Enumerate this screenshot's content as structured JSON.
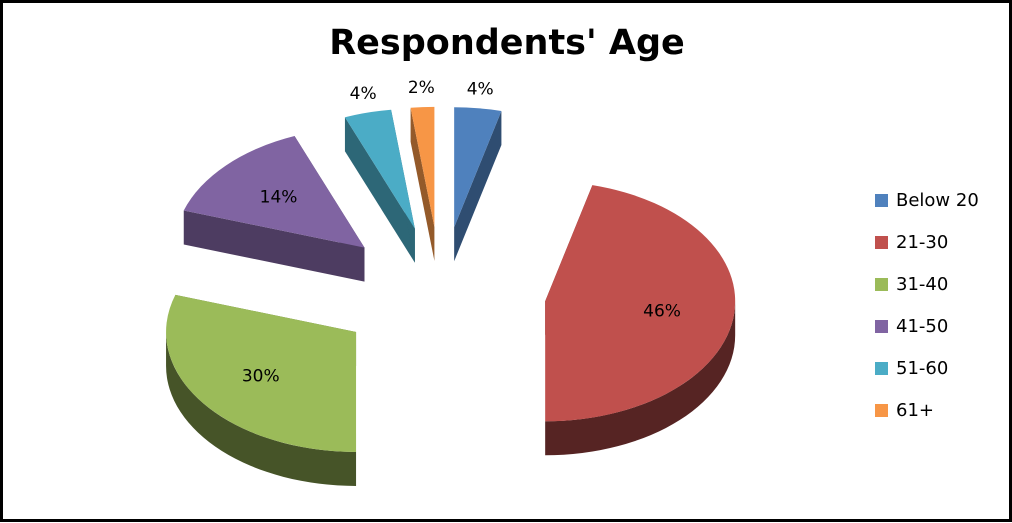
{
  "chart_data": {
    "type": "pie",
    "title": "Respondents' Age",
    "categories": [
      "Below 20",
      "21-30",
      "31-40",
      "41-50",
      "51-60",
      "61+"
    ],
    "values": [
      4,
      46,
      30,
      14,
      4,
      2
    ],
    "data_labels": [
      "4%",
      "46%",
      "30%",
      "14%",
      "4%",
      "2%"
    ],
    "colors": [
      "#4f81bd",
      "#c0504d",
      "#9bbb59",
      "#8064a2",
      "#4bacc6",
      "#f79646"
    ],
    "legend_position": "right",
    "style": "3d-exploded"
  }
}
